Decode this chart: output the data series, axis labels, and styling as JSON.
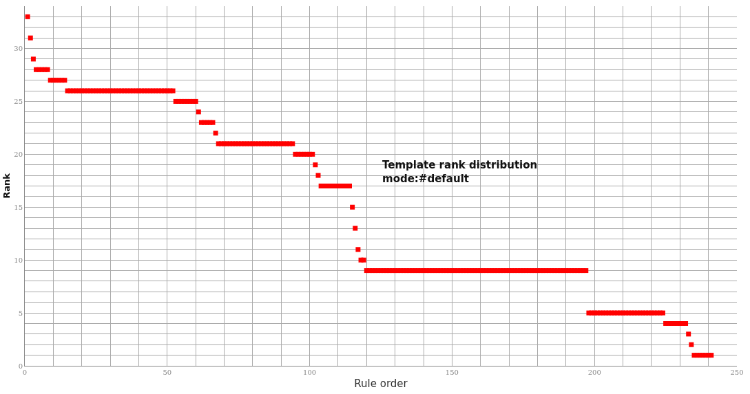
{
  "chart_data": {
    "type": "scatter",
    "xlabel": "Rule order",
    "ylabel": "Rank",
    "x": [
      1,
      2,
      3,
      4,
      5,
      6,
      7,
      8,
      9,
      10,
      11,
      12,
      13,
      14,
      15,
      16,
      17,
      18,
      19,
      20,
      21,
      22,
      23,
      24,
      25,
      26,
      27,
      28,
      29,
      30,
      31,
      32,
      33,
      34,
      35,
      36,
      37,
      38,
      39,
      40,
      41,
      42,
      43,
      44,
      45,
      46,
      47,
      48,
      49,
      50,
      51,
      52,
      53,
      54,
      55,
      56,
      57,
      58,
      59,
      60,
      61,
      62,
      63,
      64,
      65,
      66,
      67,
      68,
      69,
      70,
      71,
      72,
      73,
      74,
      75,
      76,
      77,
      78,
      79,
      80,
      81,
      82,
      83,
      84,
      85,
      86,
      87,
      88,
      89,
      90,
      91,
      92,
      93,
      94,
      95,
      96,
      97,
      98,
      99,
      100,
      101,
      102,
      103,
      104,
      105,
      106,
      107,
      108,
      109,
      110,
      111,
      112,
      113,
      114,
      115,
      116,
      117,
      118,
      119,
      120,
      121,
      122,
      123,
      124,
      125,
      126,
      127,
      128,
      129,
      130,
      131,
      132,
      133,
      134,
      135,
      136,
      137,
      138,
      139,
      140,
      141,
      142,
      143,
      144,
      145,
      146,
      147,
      148,
      149,
      150,
      151,
      152,
      153,
      154,
      155,
      156,
      157,
      158,
      159,
      160,
      161,
      162,
      163,
      164,
      165,
      166,
      167,
      168,
      169,
      170,
      171,
      172,
      173,
      174,
      175,
      176,
      177,
      178,
      179,
      180,
      181,
      182,
      183,
      184,
      185,
      186,
      187,
      188,
      189,
      190,
      191,
      192,
      193,
      194,
      195,
      196,
      197,
      198,
      199,
      200,
      201,
      202,
      203,
      204,
      205,
      206,
      207,
      208,
      209,
      210,
      211,
      212,
      213,
      214,
      215,
      216,
      217,
      218,
      219,
      220,
      221,
      222,
      223,
      224,
      225,
      226,
      227,
      228,
      229,
      230,
      231,
      232,
      233,
      234,
      235,
      236,
      237,
      238,
      239,
      240,
      241
    ],
    "values": [
      33,
      31,
      29,
      28,
      28,
      28,
      28,
      28,
      27,
      27,
      27,
      27,
      27,
      27,
      26,
      26,
      26,
      26,
      26,
      26,
      26,
      26,
      26,
      26,
      26,
      26,
      26,
      26,
      26,
      26,
      26,
      26,
      26,
      26,
      26,
      26,
      26,
      26,
      26,
      26,
      26,
      26,
      26,
      26,
      26,
      26,
      26,
      26,
      26,
      26,
      26,
      26,
      25,
      25,
      25,
      25,
      25,
      25,
      25,
      25,
      24,
      23,
      23,
      23,
      23,
      23,
      22,
      21,
      21,
      21,
      21,
      21,
      21,
      21,
      21,
      21,
      21,
      21,
      21,
      21,
      21,
      21,
      21,
      21,
      21,
      21,
      21,
      21,
      21,
      21,
      21,
      21,
      21,
      21,
      20,
      20,
      20,
      20,
      20,
      20,
      20,
      19,
      18,
      17,
      17,
      17,
      17,
      17,
      17,
      17,
      17,
      17,
      17,
      17,
      15,
      13,
      11,
      10,
      10,
      9,
      9,
      9,
      9,
      9,
      9,
      9,
      9,
      9,
      9,
      9,
      9,
      9,
      9,
      9,
      9,
      9,
      9,
      9,
      9,
      9,
      9,
      9,
      9,
      9,
      9,
      9,
      9,
      9,
      9,
      9,
      9,
      9,
      9,
      9,
      9,
      9,
      9,
      9,
      9,
      9,
      9,
      9,
      9,
      9,
      9,
      9,
      9,
      9,
      9,
      9,
      9,
      9,
      9,
      9,
      9,
      9,
      9,
      9,
      9,
      9,
      9,
      9,
      9,
      9,
      9,
      9,
      9,
      9,
      9,
      9,
      9,
      9,
      9,
      9,
      9,
      9,
      9,
      5,
      5,
      5,
      5,
      5,
      5,
      5,
      5,
      5,
      5,
      5,
      5,
      5,
      5,
      5,
      5,
      5,
      5,
      5,
      5,
      5,
      5,
      5,
      5,
      5,
      5,
      5,
      4,
      4,
      4,
      4,
      4,
      4,
      4,
      4,
      3,
      2,
      1,
      1,
      1,
      1,
      1,
      1,
      1
    ],
    "color": "#ff0000",
    "marker": "square",
    "xlim": [
      0,
      250
    ],
    "xticks": [
      0,
      {
        "value": 10,
        "label": null
      },
      {
        "value": 20,
        "label": null
      },
      {
        "value": 30,
        "label": null
      },
      {
        "value": 40,
        "label": null
      },
      50,
      {
        "value": 60,
        "label": null
      },
      {
        "value": 70,
        "label": null
      },
      {
        "value": 80,
        "label": null
      },
      {
        "value": 90,
        "label": null
      },
      100,
      {
        "value": 110,
        "label": null
      },
      {
        "value": 120,
        "label": null
      },
      {
        "value": 130,
        "label": null
      },
      {
        "value": 140,
        "label": null
      },
      150,
      {
        "value": 160,
        "label": null
      },
      {
        "value": 170,
        "label": null
      },
      {
        "value": 180,
        "label": null
      },
      {
        "value": 190,
        "label": null
      },
      200,
      {
        "value": 210,
        "label": null
      },
      {
        "value": 220,
        "label": null
      },
      {
        "value": 230,
        "label": null
      },
      {
        "value": 240,
        "label": null
      },
      250
    ],
    "ylim": [
      0,
      34
    ],
    "yticks": [
      0,
      {
        "value": 1,
        "label": null
      },
      {
        "value": 2,
        "label": null
      },
      {
        "value": 3,
        "label": null
      },
      {
        "value": 4,
        "label": null
      },
      5,
      {
        "value": 6,
        "label": null
      },
      {
        "value": 7,
        "label": null
      },
      {
        "value": 8,
        "label": null
      },
      {
        "value": 9,
        "label": null
      },
      10,
      {
        "value": 11,
        "label": null
      },
      {
        "value": 12,
        "label": null
      },
      {
        "value": 13,
        "label": null
      },
      {
        "value": 14,
        "label": null
      },
      15,
      {
        "value": 16,
        "label": null
      },
      {
        "value": 17,
        "label": null
      },
      {
        "value": 18,
        "label": null
      },
      {
        "value": 19,
        "label": null
      },
      20,
      {
        "value": 21,
        "label": null
      },
      {
        "value": 22,
        "label": null
      },
      {
        "value": 23,
        "label": null
      },
      {
        "value": 24,
        "label": null
      },
      25,
      {
        "value": 26,
        "label": null
      },
      {
        "value": 27,
        "label": null
      },
      {
        "value": 28,
        "label": null
      },
      {
        "value": 29,
        "label": null
      },
      30,
      {
        "value": 31,
        "label": null
      },
      {
        "value": 32,
        "label": null
      },
      {
        "value": 33,
        "label": null
      }
    ],
    "grid": true,
    "annotations": [
      "Template rank distribution\nmode:#default"
    ]
  }
}
